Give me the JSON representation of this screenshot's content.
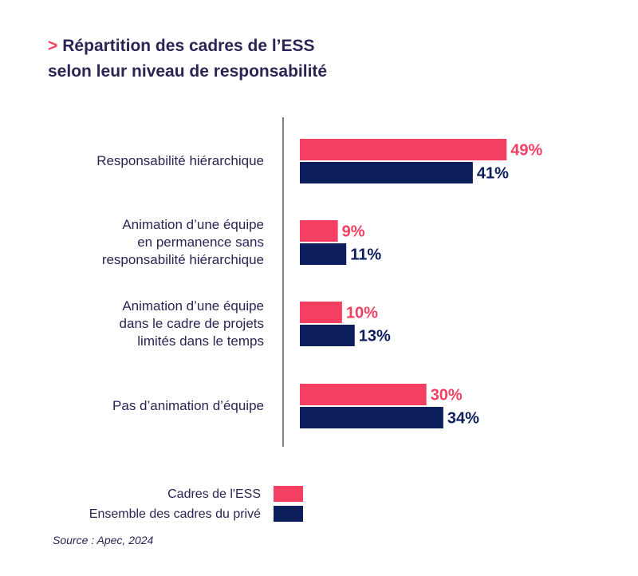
{
  "title": {
    "marker": ">",
    "line1": "Répartition des cadres de l’ESS",
    "line2": "selon leur niveau de responsabilité"
  },
  "source": "Source : Apec, 2024",
  "colors": {
    "ess": "#f43f63",
    "prive": "#0c1f5c",
    "text": "#2b2454",
    "axis": "#555555"
  },
  "chart_data": {
    "type": "bar",
    "orientation": "horizontal",
    "unit": "%",
    "categories": [
      [
        "Responsabilité hiérarchique"
      ],
      [
        "Animation d’une équipe",
        "en permanence sans",
        "responsabilité hiérarchique"
      ],
      [
        "Animation d’une équipe",
        "dans le cadre de projets",
        "limités dans le temps"
      ],
      [
        "Pas d’animation d’équipe"
      ]
    ],
    "series": [
      {
        "name": "Cadres de l'ESS",
        "color": "#f43f63",
        "values": [
          49,
          9,
          10,
          30
        ]
      },
      {
        "name": "Ensemble des cadres du privé",
        "color": "#0c1f5c",
        "values": [
          41,
          11,
          13,
          34
        ]
      }
    ],
    "xlim": [
      0,
      100
    ],
    "legend_position": "bottom-left",
    "grid": false
  }
}
